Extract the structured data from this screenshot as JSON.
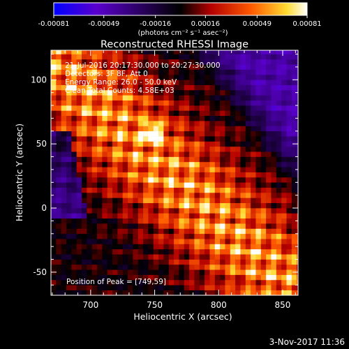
{
  "chart_data": {
    "type": "heatmap",
    "title": "Reconstructed RHESSI Image",
    "xlabel": "Heliocentric X (arcsec)",
    "ylabel": "Heliocentric Y (arcsec)",
    "xlim": [
      669,
      862
    ],
    "ylim": [
      -68,
      123
    ],
    "xticks": [
      700,
      750,
      800,
      850
    ],
    "yticks": [
      -50,
      0,
      50,
      100
    ],
    "colorbar": {
      "ticks": [
        "-0.00081",
        "-0.00049",
        "-0.00016",
        "0.00016",
        "0.00049",
        "0.00081"
      ],
      "range": [
        -0.00081,
        0.00081
      ],
      "unit_label": "(photons cm⁻² s⁻¹ asec⁻²)",
      "colormap": [
        "#0000ff",
        "#5a00cc",
        "#000000",
        "#b40000",
        "#ff5a00",
        "#ffdc32",
        "#ffffff"
      ]
    },
    "annotations": {
      "time_range": "21-Jul-2016 20:17:30.000 to 20:27:30.000",
      "detectors": "Detectors: 3F 8F, Att 0",
      "energy": "Energy Range: 26.0 - 50.0 keV",
      "clean": "Clean    Total Counts: 4.58E+03",
      "peak": "Position of Peak = [749,59]"
    },
    "peak": [
      749,
      59
    ]
  },
  "footer_date": "3-Nov-2017 11:36"
}
